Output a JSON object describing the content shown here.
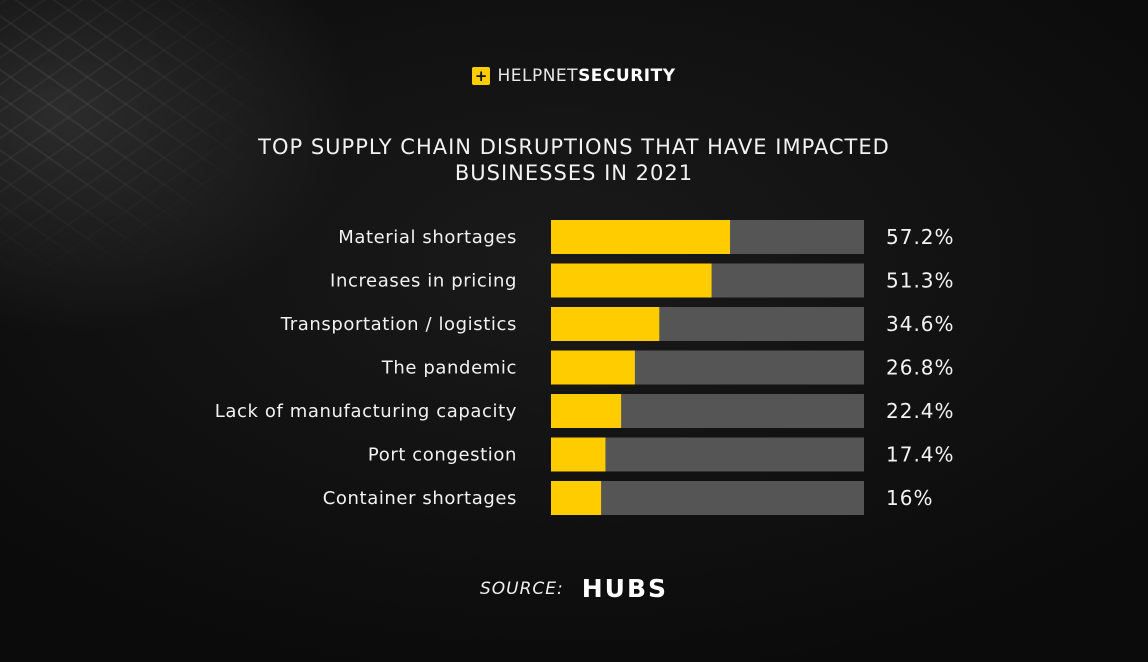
{
  "logo": {
    "prefix": "HELP",
    "middle": "NET",
    "suffix": "SECURITY",
    "icon": "plus-icon"
  },
  "title_lines": [
    "TOP SUPPLY CHAIN DISRUPTIONS THAT HAVE IMPACTED",
    "BUSINESSES IN 2021"
  ],
  "source": {
    "label": "SOURCE:",
    "brand": "HUBS"
  },
  "colors": {
    "bar_fill": "#ffcc00",
    "bar_track": "#555555",
    "text": "#f2f2f2",
    "background": "#101010"
  },
  "chart_data": {
    "type": "bar",
    "orientation": "horizontal",
    "title": "TOP SUPPLY CHAIN DISRUPTIONS THAT HAVE IMPACTED BUSINESSES IN 2021",
    "categories": [
      "Material shortages",
      "Increases in pricing",
      "Transportation / logistics",
      "The pandemic",
      "Lack of manufacturing capacity",
      "Port congestion",
      "Container shortages"
    ],
    "values": [
      57.2,
      51.3,
      34.6,
      26.8,
      22.4,
      17.4,
      16
    ],
    "value_labels": [
      "57.2%",
      "51.3%",
      "34.6%",
      "26.8%",
      "22.4%",
      "17.4%",
      "16%"
    ],
    "xlim": [
      0,
      100
    ],
    "grid": false,
    "legend": "none"
  }
}
